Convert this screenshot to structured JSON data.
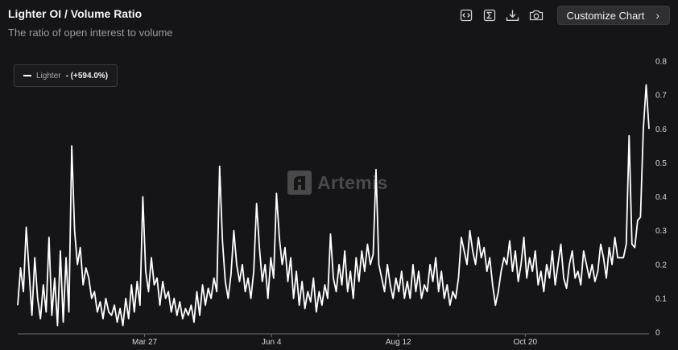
{
  "header": {
    "title": "Lighter OI / Volume Ratio",
    "subtitle": "The ratio of open interest to volume"
  },
  "toolbar": {
    "icons": [
      "embed-code-icon",
      "sigma-icon",
      "download-icon",
      "camera-icon"
    ],
    "customize_label": "Customize Chart",
    "customize_chevron": "›"
  },
  "legend": {
    "series_name": "Lighter",
    "series_value": "- (+594.0%)",
    "color": "#ffffff"
  },
  "watermark": {
    "text": "Artemis"
  },
  "chart_data": {
    "type": "line",
    "title": "Lighter OI / Volume Ratio",
    "subtitle": "The ratio of open interest to volume",
    "x_tick_labels": [
      "Mar 27",
      "Jun 4",
      "Aug 12",
      "Oct 20"
    ],
    "x_start": "Jan 16",
    "x_end": "Dec 12",
    "ylim": [
      0,
      0.8
    ],
    "y_ticks": [
      0,
      0.1,
      0.2,
      0.3,
      0.4,
      0.5,
      0.6,
      0.7,
      0.8
    ],
    "y_axis_side": "right",
    "grid": false,
    "legend_position": "top-left",
    "series": [
      {
        "name": "Lighter",
        "color": "#ffffff",
        "values": [
          0.08,
          0.19,
          0.12,
          0.31,
          0.18,
          0.05,
          0.22,
          0.1,
          0.04,
          0.14,
          0.06,
          0.28,
          0.05,
          0.16,
          0.02,
          0.24,
          0.03,
          0.22,
          0.06,
          0.55,
          0.3,
          0.2,
          0.25,
          0.14,
          0.19,
          0.16,
          0.1,
          0.12,
          0.06,
          0.09,
          0.04,
          0.1,
          0.06,
          0.05,
          0.08,
          0.03,
          0.07,
          0.02,
          0.1,
          0.04,
          0.14,
          0.06,
          0.15,
          0.08,
          0.4,
          0.18,
          0.12,
          0.22,
          0.14,
          0.16,
          0.08,
          0.15,
          0.1,
          0.12,
          0.06,
          0.1,
          0.05,
          0.09,
          0.04,
          0.07,
          0.05,
          0.08,
          0.03,
          0.12,
          0.05,
          0.14,
          0.08,
          0.13,
          0.1,
          0.16,
          0.12,
          0.49,
          0.27,
          0.15,
          0.1,
          0.17,
          0.3,
          0.2,
          0.15,
          0.2,
          0.12,
          0.16,
          0.1,
          0.18,
          0.38,
          0.25,
          0.15,
          0.2,
          0.1,
          0.22,
          0.16,
          0.41,
          0.28,
          0.2,
          0.25,
          0.15,
          0.22,
          0.1,
          0.18,
          0.08,
          0.15,
          0.07,
          0.12,
          0.09,
          0.16,
          0.06,
          0.12,
          0.08,
          0.14,
          0.1,
          0.29,
          0.16,
          0.12,
          0.2,
          0.14,
          0.24,
          0.12,
          0.18,
          0.1,
          0.22,
          0.15,
          0.24,
          0.18,
          0.26,
          0.2,
          0.23,
          0.48,
          0.2,
          0.16,
          0.12,
          0.2,
          0.14,
          0.1,
          0.16,
          0.12,
          0.18,
          0.1,
          0.15,
          0.1,
          0.2,
          0.12,
          0.18,
          0.1,
          0.14,
          0.12,
          0.2,
          0.15,
          0.22,
          0.12,
          0.18,
          0.1,
          0.14,
          0.08,
          0.12,
          0.1,
          0.16,
          0.28,
          0.24,
          0.2,
          0.3,
          0.24,
          0.2,
          0.28,
          0.22,
          0.25,
          0.18,
          0.22,
          0.14,
          0.08,
          0.12,
          0.18,
          0.22,
          0.2,
          0.27,
          0.18,
          0.24,
          0.15,
          0.2,
          0.28,
          0.16,
          0.22,
          0.18,
          0.24,
          0.14,
          0.18,
          0.12,
          0.2,
          0.16,
          0.24,
          0.14,
          0.2,
          0.26,
          0.16,
          0.13,
          0.2,
          0.24,
          0.16,
          0.18,
          0.14,
          0.24,
          0.2,
          0.16,
          0.2,
          0.15,
          0.18,
          0.26,
          0.22,
          0.16,
          0.25,
          0.2,
          0.28,
          0.22,
          0.22,
          0.22,
          0.26,
          0.58,
          0.26,
          0.25,
          0.33,
          0.34,
          0.6,
          0.73,
          0.6
        ]
      }
    ]
  }
}
